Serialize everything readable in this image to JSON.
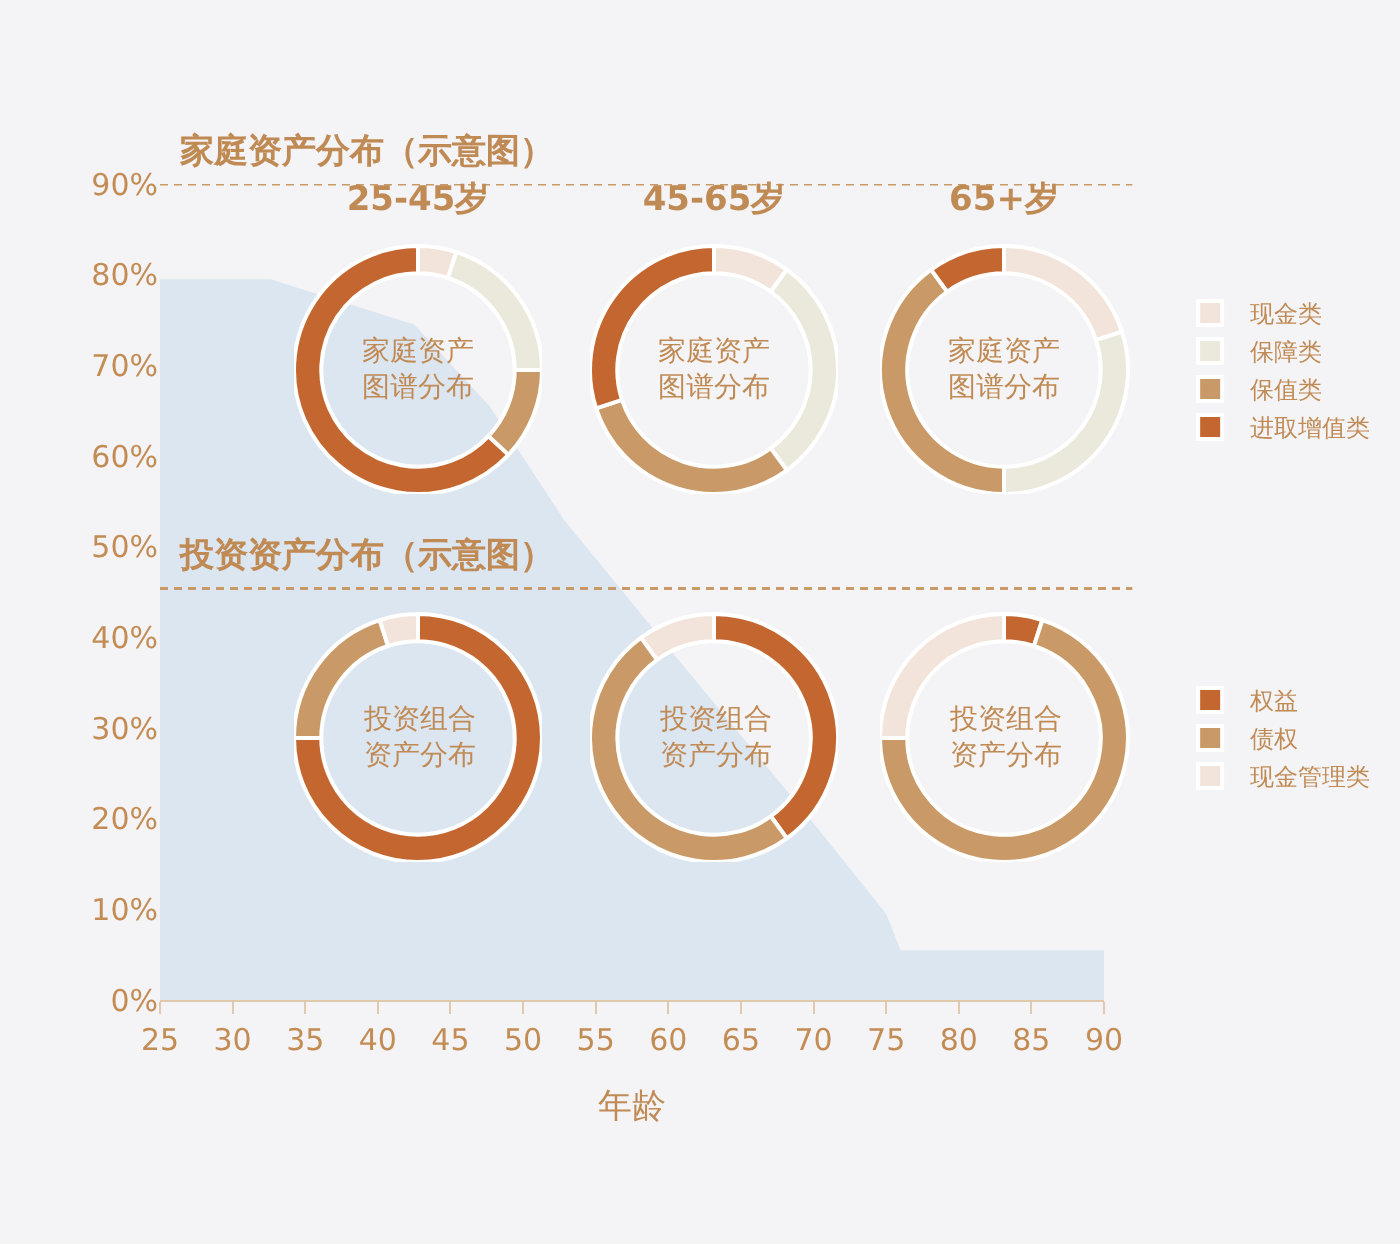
{
  "chart_data": [
    {
      "type": "area",
      "xlabel": "年龄",
      "x": [
        25,
        32.6,
        42.5,
        47.7,
        52.8,
        62,
        70,
        75,
        76,
        90
      ],
      "values": [
        79.5,
        79.5,
        74.5,
        65.5,
        53,
        35,
        19.5,
        9.5,
        5.5,
        5.5
      ],
      "color": "#dce6f1",
      "xlim": [
        25,
        90
      ],
      "xticks": [
        25,
        30,
        35,
        40,
        45,
        50,
        55,
        60,
        65,
        70,
        75,
        80,
        85,
        90
      ],
      "ylim": [
        0,
        90
      ],
      "yticks": [
        {
          "value": 0,
          "label": "0%"
        },
        {
          "value": 10,
          "label": "10%"
        },
        {
          "value": 20,
          "label": "20%"
        },
        {
          "value": 30,
          "label": "30%"
        },
        {
          "value": 40,
          "label": "40%"
        },
        {
          "value": 50,
          "label": "50%"
        },
        {
          "value": 60,
          "label": "60%"
        },
        {
          "value": 70,
          "label": "70%"
        },
        {
          "value": 80,
          "label": "80%"
        },
        {
          "value": 90,
          "label": "90%"
        }
      ],
      "grid": false,
      "legend": false,
      "ref_lines": [
        {
          "axis": "y",
          "value": 90,
          "label": "家庭资产分布（示意图）",
          "color": "#c99a67",
          "line_style": "dashed"
        },
        {
          "axis": "y",
          "value": 45.4,
          "label": "投资资产分布（示意图）",
          "color": "#c99a67",
          "line_style": "dashed"
        }
      ]
    },
    {
      "type": "donut",
      "title": "25-45岁",
      "categories": [
        null,
        null,
        null,
        null
      ],
      "values": [
        5,
        20,
        12,
        63
      ],
      "colors": [
        "#f2e4da",
        "#ebe8dc",
        "#c99a67",
        "#c4662f"
      ],
      "annotations": [
        "家庭资产图谱分布"
      ]
    },
    {
      "type": "donut",
      "title": "45-65岁",
      "categories": [
        null,
        null,
        null,
        null
      ],
      "values": [
        10,
        30,
        30,
        30
      ],
      "colors": [
        "#f2e4da",
        "#ebe8dc",
        "#c99a67",
        "#c4662f"
      ],
      "annotations": [
        "家庭资产图谱分布"
      ]
    },
    {
      "type": "donut",
      "title": "65+岁",
      "categories": [
        "现金类",
        "保障类",
        "保值类",
        "进取增值类"
      ],
      "values": [
        20,
        30,
        40,
        10
      ],
      "colors": [
        "#f2e4da",
        "#ebe8dc",
        "#c99a67",
        "#c4662f"
      ],
      "annotations": [
        "家庭资产图谱分布"
      ],
      "legend": "right"
    },
    {
      "type": "donut",
      "categories": [
        null,
        null,
        null
      ],
      "values": [
        75,
        20,
        5
      ],
      "colors": [
        "#c4662f",
        "#c99a67",
        "#f2e4da"
      ],
      "annotations": [
        "投资组合资产分布"
      ]
    },
    {
      "type": "donut",
      "categories": [
        null,
        null,
        null
      ],
      "values": [
        40,
        50,
        10
      ],
      "colors": [
        "#c4662f",
        "#c99a67",
        "#f2e4da"
      ],
      "annotations": [
        "投资组合资产分布"
      ]
    },
    {
      "type": "donut",
      "categories": [
        "权益",
        "债权",
        "现金管理类"
      ],
      "values": [
        5,
        70,
        25
      ],
      "colors": [
        "#c4662f",
        "#c99a67",
        "#f2e4da"
      ],
      "annotations": [
        "投资组合资产分布"
      ],
      "legend": "right"
    }
  ]
}
